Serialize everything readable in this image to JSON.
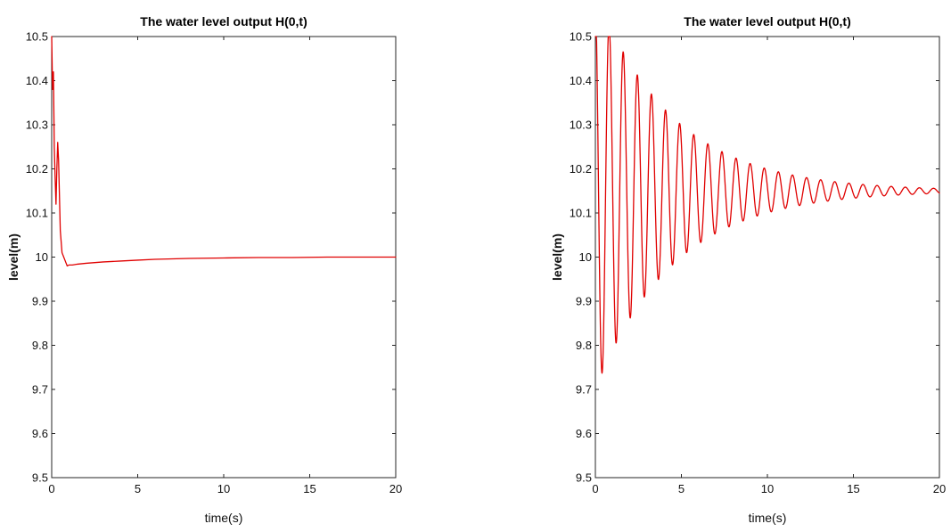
{
  "chart_data": [
    {
      "type": "line",
      "title": "The water level output H(0,t)",
      "xlabel": "time(s)",
      "ylabel": "level(m)",
      "xlim": [
        0,
        20
      ],
      "ylim": [
        9.5,
        10.5
      ],
      "xticks": [
        "0",
        "5",
        "10",
        "15",
        "20"
      ],
      "yticks": [
        "9.5",
        "9.6",
        "9.7",
        "9.8",
        "9.9",
        "10",
        "10.1",
        "10.2",
        "10.3",
        "10.4",
        "10.5"
      ],
      "grid": false,
      "series": [
        {
          "color": "#e00000",
          "x": [
            0,
            0.05,
            0.1,
            0.15,
            0.2,
            0.25,
            0.3,
            0.35,
            0.4,
            0.45,
            0.5,
            0.6,
            0.7,
            0.8,
            0.9,
            1.0,
            1.2,
            1.5,
            2,
            3,
            4,
            5,
            6,
            7,
            8,
            10,
            12,
            14,
            16,
            18,
            20
          ],
          "y": [
            10.5,
            10.38,
            10.42,
            10.25,
            10.18,
            10.12,
            10.2,
            10.26,
            10.22,
            10.14,
            10.06,
            10.01,
            10.0,
            9.99,
            9.98,
            9.982,
            9.982,
            9.984,
            9.986,
            9.989,
            9.991,
            9.993,
            9.995,
            9.996,
            9.997,
            9.998,
            9.999,
            9.999,
            10.0,
            10.0,
            10.0
          ]
        }
      ]
    },
    {
      "type": "line",
      "title": "The water level output H(0,t)",
      "xlabel": "time(s)",
      "ylabel": "level(m)",
      "xlim": [
        0,
        20
      ],
      "ylim": [
        9.5,
        10.5
      ],
      "xticks": [
        "0",
        "5",
        "10",
        "15",
        "20"
      ],
      "yticks": [
        "9.5",
        "9.6",
        "9.7",
        "9.8",
        "9.9",
        "10",
        "10.1",
        "10.2",
        "10.3",
        "10.4",
        "10.5"
      ],
      "grid": false,
      "series": [
        {
          "color": "#e00000",
          "model": "damped_oscillation",
          "equilibrium": 10.15,
          "amplitude_start": 0.45,
          "decay_rate": 0.22,
          "period": 0.82,
          "x": [
            0,
            0.2,
            0.4,
            0.8,
            1.2,
            1.6,
            2.0,
            2.4,
            2.8,
            3.2,
            4.0,
            4.8,
            5.6,
            6.4,
            7.2,
            8.0,
            8.8,
            9.6,
            10.4,
            12,
            14,
            16,
            18,
            20
          ],
          "y": [
            10.5,
            9.78,
            9.74,
            10.58,
            9.82,
            10.45,
            9.88,
            10.39,
            9.93,
            10.34,
            10.3,
            10.27,
            10.24,
            10.22,
            10.2,
            10.19,
            10.18,
            10.17,
            10.165,
            10.16,
            10.155,
            10.152,
            10.151,
            10.15
          ]
        }
      ]
    }
  ]
}
